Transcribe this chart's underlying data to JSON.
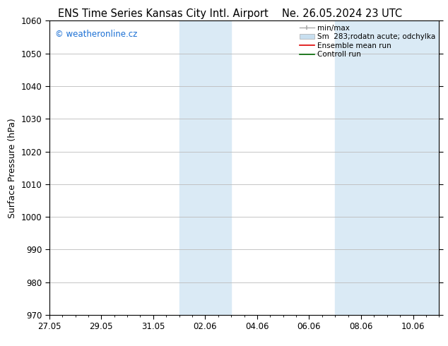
{
  "title_left": "ENS Time Series Kansas City Intl. Airport",
  "title_right": "Ne. 26.05.2024 23 UTC",
  "ylabel": "Surface Pressure (hPa)",
  "ylim": [
    970,
    1060
  ],
  "yticks": [
    970,
    980,
    990,
    1000,
    1010,
    1020,
    1030,
    1040,
    1050,
    1060
  ],
  "xlim_start": 0.0,
  "xlim_end": 15.0,
  "xtick_labels": [
    "27.05",
    "29.05",
    "31.05",
    "02.06",
    "04.06",
    "06.06",
    "08.06",
    "10.06"
  ],
  "xtick_positions": [
    0.0,
    2.0,
    4.0,
    6.0,
    8.0,
    10.0,
    12.0,
    14.0
  ],
  "shaded_regions": [
    {
      "x_start": 5.0,
      "x_end": 7.0,
      "color": "#daeaf5"
    },
    {
      "x_start": 11.0,
      "x_end": 15.0,
      "color": "#daeaf5"
    }
  ],
  "watermark_text": "© weatheronline.cz",
  "watermark_color": "#1a6fd4",
  "background_color": "#ffffff",
  "plot_bg_color": "#ffffff",
  "grid_color": "#bbbbbb",
  "legend_entries": [
    {
      "label": "min/max",
      "color": "#999999",
      "type": "errorbar"
    },
    {
      "label": "Sm  283;rodatn acute; odchylka",
      "color": "#c8dff0",
      "type": "bar"
    },
    {
      "label": "Ensemble mean run",
      "color": "#dd0000",
      "type": "line"
    },
    {
      "label": "Controll run",
      "color": "#006600",
      "type": "line"
    }
  ],
  "title_fontsize": 10.5,
  "axis_label_fontsize": 9,
  "tick_fontsize": 8.5,
  "legend_fontsize": 7.5,
  "watermark_fontsize": 8.5
}
